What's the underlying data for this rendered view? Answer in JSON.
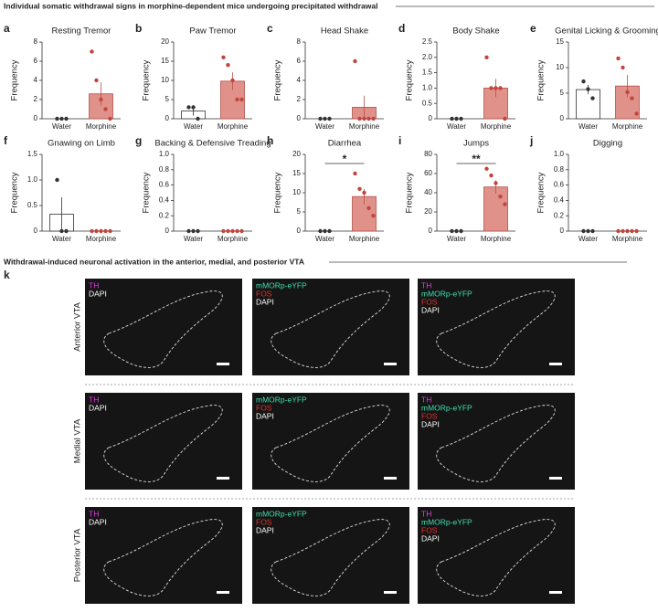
{
  "section_titles": [
    "Individual somatic withdrawal signs in morphine-dependent mice undergoing precipitated withdrawal",
    "Withdrawal-induced neuronal activation in the anterior, medial, and posterior VTA"
  ],
  "panel_letters": [
    "a",
    "b",
    "c",
    "d",
    "e",
    "f",
    "g",
    "h",
    "i",
    "j",
    "k"
  ],
  "chart_data": [
    {
      "type": "bar",
      "title": "Resting Tremor",
      "ylabel": "Frequency",
      "categories": [
        "Water",
        "Morphine"
      ],
      "values": [
        0,
        2.6
      ],
      "errors": [
        0,
        1.2
      ],
      "points": [
        [
          0,
          0,
          0
        ],
        [
          7,
          4,
          2,
          1,
          0
        ]
      ],
      "bar_colors": [
        "#ffffff",
        "#e0918a"
      ],
      "point_colors": [
        "#333333",
        "#c0453d"
      ],
      "ylim": [
        0,
        8
      ],
      "yticks": [
        0,
        2,
        4,
        6,
        8
      ]
    },
    {
      "type": "bar",
      "title": "Paw Tremor",
      "ylabel": "Frequency",
      "categories": [
        "Water",
        "Morphine"
      ],
      "values": [
        2,
        9.8
      ],
      "errors": [
        1.2,
        2.3
      ],
      "points": [
        [
          3,
          3,
          0
        ],
        [
          16,
          14,
          10,
          5,
          5
        ]
      ],
      "bar_colors": [
        "#ffffff",
        "#e0918a"
      ],
      "point_colors": [
        "#333333",
        "#c0453d"
      ],
      "ylim": [
        0,
        20
      ],
      "yticks": [
        0,
        5,
        10,
        15,
        20
      ]
    },
    {
      "type": "bar",
      "title": "Head Shake",
      "ylabel": "Frequency",
      "categories": [
        "Water",
        "Morphine"
      ],
      "values": [
        0,
        1.2
      ],
      "errors": [
        0,
        1.2
      ],
      "points": [
        [
          0,
          0,
          0
        ],
        [
          6,
          0,
          0,
          0,
          0
        ]
      ],
      "bar_colors": [
        "#ffffff",
        "#e0918a"
      ],
      "point_colors": [
        "#333333",
        "#c0453d"
      ],
      "ylim": [
        0,
        8
      ],
      "yticks": [
        0,
        2,
        4,
        6,
        8
      ]
    },
    {
      "type": "bar",
      "title": "Body Shake",
      "ylabel": "Frequency",
      "categories": [
        "Water",
        "Morphine"
      ],
      "values": [
        0,
        1.0
      ],
      "errors": [
        0,
        0.3
      ],
      "points": [
        [
          0,
          0,
          0
        ],
        [
          2,
          1,
          1,
          1,
          0
        ]
      ],
      "bar_colors": [
        "#ffffff",
        "#e0918a"
      ],
      "point_colors": [
        "#333333",
        "#c0453d"
      ],
      "ylim": [
        0,
        2.5
      ],
      "yticks": [
        0,
        0.5,
        {
          "value": 1,
          "label": "1.0"
        },
        1.5,
        {
          "value": 2,
          "label": "2.0"
        },
        2.5
      ]
    },
    {
      "type": "bar",
      "title": "Genital Licking & Grooming",
      "ylabel": "Frequency",
      "categories": [
        "Water",
        "Morphine"
      ],
      "values": [
        5.7,
        6.4
      ],
      "errors": [
        0.9,
        2.2
      ],
      "points": [
        [
          7.3,
          5.8,
          4
        ],
        [
          11.8,
          10,
          5.2,
          4,
          1
        ]
      ],
      "bar_colors": [
        "#ffffff",
        "#e0918a"
      ],
      "point_colors": [
        "#333333",
        "#c0453d"
      ],
      "ylim": [
        0,
        15
      ],
      "yticks": [
        0,
        5,
        10,
        15
      ]
    },
    {
      "type": "bar",
      "title": "Gnawing on Limb",
      "ylabel": "Frequency",
      "categories": [
        "Water",
        "Morphine"
      ],
      "values": [
        0.33,
        0
      ],
      "errors": [
        0.33,
        0
      ],
      "points": [
        [
          1,
          0,
          0
        ],
        [
          0,
          0,
          0,
          0,
          0
        ]
      ],
      "bar_colors": [
        "#ffffff",
        "#e0918a"
      ],
      "point_colors": [
        "#333333",
        "#c0453d"
      ],
      "ylim": [
        0,
        1.5
      ],
      "yticks": [
        0,
        0.5,
        {
          "value": 1,
          "label": "1.0"
        },
        1.5
      ]
    },
    {
      "type": "bar",
      "title": "Backing & Defensive Treading",
      "ylabel": "Frequency",
      "categories": [
        "Water",
        "Morphine"
      ],
      "values": [
        0,
        0
      ],
      "errors": [
        0,
        0
      ],
      "points": [
        [
          0,
          0,
          0
        ],
        [
          0,
          0,
          0,
          0,
          0
        ]
      ],
      "bar_colors": [
        "#ffffff",
        "#e0918a"
      ],
      "point_colors": [
        "#333333",
        "#c0453d"
      ],
      "ylim": [
        0,
        1
      ],
      "yticks": [
        0,
        0.2,
        0.4,
        0.6,
        0.8,
        {
          "value": 1,
          "label": "1.0"
        }
      ]
    },
    {
      "type": "bar",
      "title": "Diarrhea",
      "ylabel": "Frequency",
      "categories": [
        "Water",
        "Morphine"
      ],
      "values": [
        0,
        9
      ],
      "errors": [
        0,
        2
      ],
      "points": [
        [
          0,
          0,
          0
        ],
        [
          15,
          11,
          10,
          6,
          4
        ]
      ],
      "bar_colors": [
        "#ffffff",
        "#e0918a"
      ],
      "point_colors": [
        "#333333",
        "#c0453d"
      ],
      "ylim": [
        0,
        20
      ],
      "yticks": [
        0,
        5,
        10,
        15,
        20
      ],
      "significance": "*"
    },
    {
      "type": "bar",
      "title": "Jumps",
      "ylabel": "Frequency",
      "categories": [
        "Water",
        "Morphine"
      ],
      "values": [
        0,
        46
      ],
      "errors": [
        0,
        7
      ],
      "points": [
        [
          0,
          0,
          0
        ],
        [
          65,
          58,
          50,
          36,
          28
        ]
      ],
      "bar_colors": [
        "#ffffff",
        "#e0918a"
      ],
      "point_colors": [
        "#333333",
        "#c0453d"
      ],
      "ylim": [
        0,
        80
      ],
      "yticks": [
        0,
        20,
        40,
        60,
        80
      ],
      "significance": "**"
    },
    {
      "type": "bar",
      "title": "Digging",
      "ylabel": "Frequency",
      "categories": [
        "Water",
        "Morphine"
      ],
      "values": [
        0,
        0
      ],
      "errors": [
        0,
        0
      ],
      "points": [
        [
          0,
          0,
          0
        ],
        [
          0,
          0,
          0,
          0,
          0
        ]
      ],
      "bar_colors": [
        "#ffffff",
        "#e0918a"
      ],
      "point_colors": [
        "#333333",
        "#c0453d"
      ],
      "ylim": [
        0,
        1
      ],
      "yticks": [
        0,
        0.2,
        0.4,
        0.6,
        0.8,
        {
          "value": 1,
          "label": "1.0"
        }
      ]
    }
  ],
  "image_panels": {
    "rows": [
      "Anterior VTA",
      "Medial VTA",
      "Posterior VTA"
    ],
    "columns": [
      [
        {
          "label": "TH",
          "color": "#e23ee2"
        },
        {
          "label": "DAPI",
          "color": "#ffffff"
        }
      ],
      [
        {
          "label": "mMORp-eYFP",
          "color": "#3fe0b0"
        },
        {
          "label": "FOS",
          "color": "#e8332c"
        },
        {
          "label": "DAPI",
          "color": "#ffffff"
        }
      ],
      [
        {
          "label": "TH",
          "color": "#e23ee2"
        },
        {
          "label": "mMORp-eYFP",
          "color": "#3fe0b0"
        },
        {
          "label": "FOS",
          "color": "#e8332c"
        },
        {
          "label": "DAPI",
          "color": "#ffffff"
        }
      ]
    ]
  }
}
